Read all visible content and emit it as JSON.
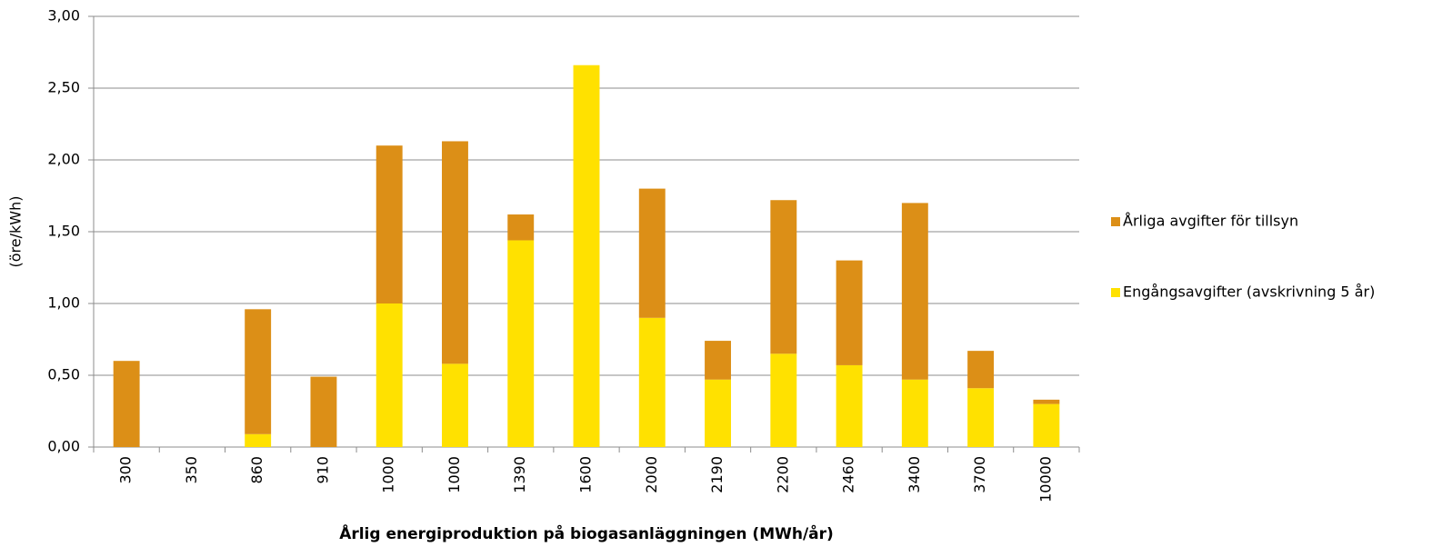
{
  "chart_data": {
    "type": "bar",
    "stacked": true,
    "x_label": "Årlig energiproduktion på biogasanläggningen (MWh/år)",
    "y_label": "(öre/kWh)",
    "categories": [
      "300",
      "350",
      "860",
      "910",
      "1000",
      "1000",
      "1390",
      "1600",
      "2000",
      "2190",
      "2200",
      "2460",
      "3400",
      "3700",
      "10000"
    ],
    "series": [
      {
        "name": "Engångsavgifter (avskrivning 5 år)",
        "color": "#ffe100",
        "values": [
          0,
          0,
          0.09,
          0,
          1.0,
          0.58,
          1.44,
          2.66,
          0.9,
          0.47,
          0.65,
          0.57,
          0.47,
          0.41,
          0.3
        ]
      },
      {
        "name": "Årliga avgifter för tillsyn",
        "color": "#dc8f17",
        "values": [
          0.6,
          0,
          0.87,
          0.49,
          1.1,
          1.55,
          0.18,
          0,
          0.9,
          0.27,
          1.07,
          0.73,
          1.23,
          0.26,
          0.03
        ]
      }
    ],
    "ylim": [
      0,
      3
    ],
    "yticks": [
      {
        "value": 0,
        "label": "0,00"
      },
      {
        "value": 0.5,
        "label": "0,50"
      },
      {
        "value": 1,
        "label": "1,00"
      },
      {
        "value": 1.5,
        "label": "1,50"
      },
      {
        "value": 2,
        "label": "2,00"
      },
      {
        "value": 2.5,
        "label": "2,50"
      },
      {
        "value": 3,
        "label": "3,00"
      }
    ],
    "grid": true,
    "legend": "right"
  }
}
